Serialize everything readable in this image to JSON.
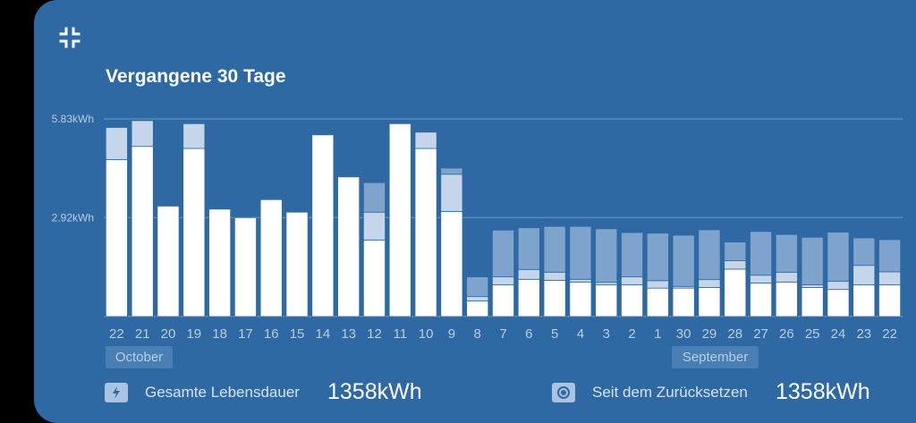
{
  "card": {
    "title": "Vergangene 30 Tage",
    "collapse_icon": "collapse-arrows-icon"
  },
  "chart_data": {
    "type": "bar",
    "stacked": true,
    "categories": [
      "22",
      "21",
      "20",
      "19",
      "18",
      "17",
      "16",
      "15",
      "14",
      "13",
      "12",
      "11",
      "10",
      "9",
      "8",
      "7",
      "6",
      "5",
      "4",
      "3",
      "2",
      "1",
      "30",
      "29",
      "28",
      "27",
      "26",
      "25",
      "24",
      "23",
      "22"
    ],
    "series": [
      {
        "color": "#ffffff",
        "values": [
          4.63,
          5.02,
          3.26,
          4.96,
          3.17,
          2.92,
          3.45,
          3.08,
          5.36,
          4.12,
          2.26,
          5.69,
          4.96,
          3.1,
          0.46,
          0.94,
          1.1,
          1.07,
          1.02,
          0.94,
          0.94,
          0.84,
          0.84,
          0.86,
          1.4,
          0.99,
          1.02,
          0.86,
          0.8,
          0.94,
          0.94
        ]
      },
      {
        "color": "#c6d6ea",
        "values": [
          0.95,
          0.76,
          0,
          0.73,
          0,
          0,
          0,
          0,
          0,
          0,
          0.82,
          0,
          0.48,
          1.1,
          0.13,
          0.23,
          0.29,
          0.24,
          0.08,
          0.07,
          0.23,
          0.22,
          0.05,
          0.23,
          0.25,
          0.23,
          0.29,
          0.08,
          0.24,
          0.57,
          0.38
        ]
      },
      {
        "color": "#7ea3cd",
        "values": [
          0,
          0,
          0,
          0,
          0,
          0,
          0,
          0,
          0,
          0,
          0.87,
          0,
          0,
          0.18,
          0.58,
          1.38,
          1.23,
          1.35,
          1.56,
          1.58,
          1.31,
          1.4,
          1.51,
          1.47,
          0.55,
          1.29,
          1.11,
          1.4,
          1.45,
          0.81,
          0.95
        ]
      }
    ],
    "y_ticks": [
      {
        "value": 5.83,
        "label": "5.83kWh"
      },
      {
        "value": 2.92,
        "label": "2.92kWh"
      }
    ],
    "ylim": [
      0,
      5.83
    ],
    "months": [
      "October",
      "September"
    ]
  },
  "stats": {
    "lifetime": {
      "icon": "lightning-bolt-icon",
      "label": "Gesamte Lebensdauer",
      "value": "1358kWh"
    },
    "since_reset": {
      "icon": "reset-target-icon",
      "label": "Seit dem Zurücksetzen",
      "value": "1358kWh"
    }
  },
  "colors": {
    "card_bg": "#2e69a4",
    "gridline": "#6f9ac6",
    "axis_text": "#b9cde3"
  }
}
